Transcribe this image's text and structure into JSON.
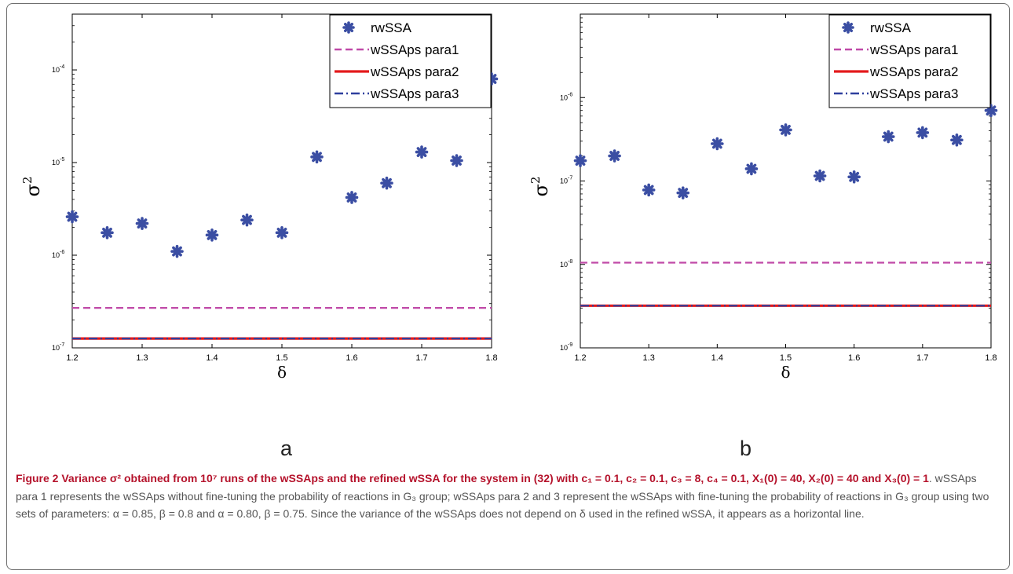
{
  "chart_data": [
    {
      "panel": "a",
      "type": "scatter",
      "xlabel": "δ",
      "ylabel": "σ",
      "ylabel_sup": "2",
      "xlim": [
        1.2,
        1.8
      ],
      "ylim": [
        1e-07,
        0.0004
      ],
      "yscale": "log",
      "xticks": [
        "1.2",
        "1.3",
        "1.4",
        "1.5",
        "1.6",
        "1.7",
        "1.8"
      ],
      "yticks": [
        {
          "v": 1e-07,
          "base": "10",
          "exp": "-7"
        },
        {
          "v": 1e-06,
          "base": "10",
          "exp": "-6"
        },
        {
          "v": 1e-05,
          "base": "10",
          "exp": "-5"
        },
        {
          "v": 0.0001,
          "base": "10",
          "exp": "-4"
        }
      ],
      "grid": false,
      "legend_position": "top-right",
      "series": [
        {
          "name": "rwSSA",
          "kind": "points",
          "color": "#3b4ea3",
          "x": [
            1.2,
            1.25,
            1.3,
            1.35,
            1.4,
            1.45,
            1.5,
            1.55,
            1.6,
            1.65,
            1.7,
            1.75,
            1.8
          ],
          "y": [
            2.6e-06,
            1.75e-06,
            2.2e-06,
            1.1e-06,
            1.65e-06,
            2.4e-06,
            1.75e-06,
            1.15e-05,
            4.2e-06,
            6e-06,
            1.3e-05,
            1.05e-05,
            8e-05
          ]
        },
        {
          "name": "wSSAps para1",
          "kind": "hline",
          "style": "dashed",
          "color": "#c04aa8",
          "y": 2.7e-07
        },
        {
          "name": "wSSAps para2",
          "kind": "hline",
          "style": "solid",
          "color": "#e31a1c",
          "y": 1.26e-07
        },
        {
          "name": "wSSAps para3",
          "kind": "hline",
          "style": "dashdot",
          "color": "#2e3f9e",
          "y": 1.26e-07
        }
      ]
    },
    {
      "panel": "b",
      "type": "scatter",
      "xlabel": "δ",
      "ylabel": "σ",
      "ylabel_sup": "2",
      "xlim": [
        1.2,
        1.8
      ],
      "ylim": [
        1e-09,
        1e-05
      ],
      "yscale": "log",
      "xticks": [
        "1.2",
        "1.3",
        "1.4",
        "1.5",
        "1.6",
        "1.7",
        "1.8"
      ],
      "yticks": [
        {
          "v": 1e-09,
          "base": "10",
          "exp": "-9"
        },
        {
          "v": 1e-08,
          "base": "10",
          "exp": "-8"
        },
        {
          "v": 1e-07,
          "base": "10",
          "exp": "-7"
        },
        {
          "v": 1e-06,
          "base": "10",
          "exp": "-6"
        }
      ],
      "grid": false,
      "legend_position": "top-right",
      "series": [
        {
          "name": "rwSSA",
          "kind": "points",
          "color": "#3b4ea3",
          "x": [
            1.2,
            1.25,
            1.3,
            1.35,
            1.4,
            1.45,
            1.5,
            1.55,
            1.6,
            1.65,
            1.7,
            1.75,
            1.8
          ],
          "y": [
            1.75e-07,
            2e-07,
            7.8e-08,
            7.2e-08,
            2.8e-07,
            1.4e-07,
            4.1e-07,
            1.15e-07,
            1.12e-07,
            3.4e-07,
            3.8e-07,
            3.1e-07,
            7e-07
          ]
        },
        {
          "name": "wSSAps para1",
          "kind": "hline",
          "style": "dashed",
          "color": "#c04aa8",
          "y": 1.05e-08
        },
        {
          "name": "wSSAps para2",
          "kind": "hline",
          "style": "solid",
          "color": "#e31a1c",
          "y": 3.2e-09
        },
        {
          "name": "wSSAps para3",
          "kind": "hline",
          "style": "dashdot",
          "color": "#2e3f9e",
          "y": 3.2e-09
        }
      ]
    }
  ],
  "panel_labels": {
    "a": "a",
    "b": "b"
  },
  "caption": {
    "title": "Figure 2 Variance σ² obtained from 10⁷ runs of the wSSAps and the refined wSSA for the system in (32) with c₁ = 0.1, c₂ = 0.1, c₃ = 8, c₄ = 0.1, X₁(0) = 40, X₂(0) = 40 and X₃(0) = 1",
    "body": ". wSSAps para 1 represents the wSSAps without fine-tuning the probability of reactions in G₃ group; wSSAps para 2 and 3 represent the wSSAps with fine-tuning the probability of reactions in G₃ group using two sets of parameters: α = 0.85, β = 0.8 and α = 0.80, β = 0.75. Since the variance of the wSSAps does not depend on δ used in the refined wSSA, it appears as a horizontal line."
  }
}
